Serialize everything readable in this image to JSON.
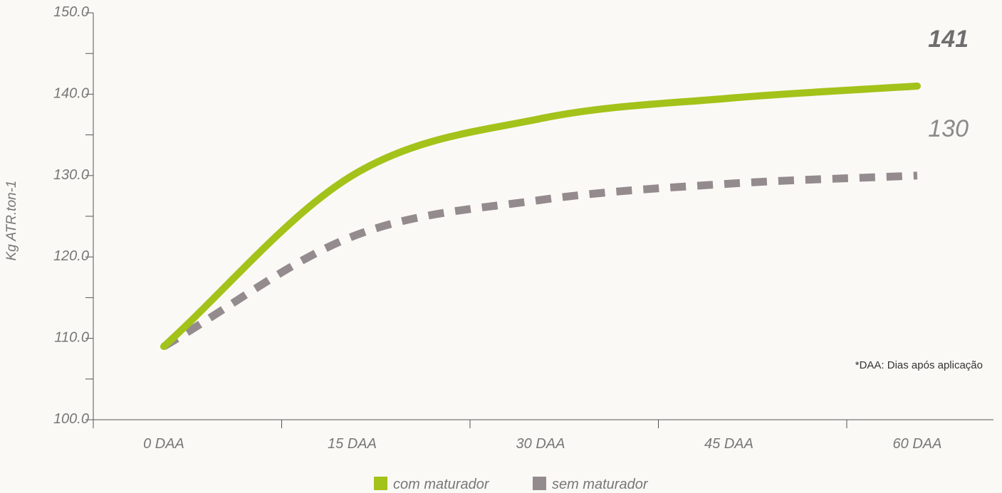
{
  "chart_data": {
    "type": "line",
    "ylabel": "Kg ATR.ton-1",
    "ylim": [
      100,
      150
    ],
    "y_ticks": [
      "150.0",
      "140.0",
      "130.0",
      "120.0",
      "110.0",
      "100.0"
    ],
    "categories": [
      "0 DAA",
      "15 DAA",
      "30 DAA",
      "45 DAA",
      "60 DAA"
    ],
    "x": [
      0,
      15,
      30,
      45,
      60
    ],
    "series": [
      {
        "name": "com maturador",
        "color": "#a3c21a",
        "style": "solid",
        "values": [
          109,
          130,
          137,
          139.5,
          141
        ],
        "end_label": "141"
      },
      {
        "name": "sem maturador",
        "color": "#948b8e",
        "style": "dashed",
        "values": [
          109,
          122.5,
          127,
          129,
          130
        ],
        "end_label": "130"
      }
    ],
    "note": "*DAA: Dias após aplicação",
    "grid": false,
    "legend_position": "bottom"
  }
}
